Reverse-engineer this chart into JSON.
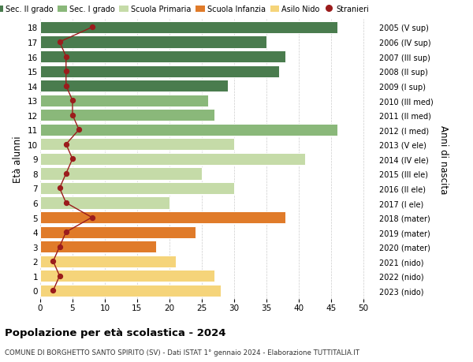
{
  "ages": [
    0,
    1,
    2,
    3,
    4,
    5,
    6,
    7,
    8,
    9,
    10,
    11,
    12,
    13,
    14,
    15,
    16,
    17,
    18
  ],
  "bar_values": [
    28,
    27,
    21,
    18,
    24,
    38,
    20,
    30,
    25,
    41,
    30,
    46,
    27,
    26,
    29,
    37,
    38,
    35,
    46
  ],
  "stranieri": [
    2,
    3,
    2,
    3,
    4,
    8,
    4,
    3,
    4,
    5,
    4,
    6,
    5,
    5,
    4,
    4,
    4,
    3,
    8
  ],
  "right_labels": [
    "2023 (nido)",
    "2022 (nido)",
    "2021 (nido)",
    "2020 (mater)",
    "2019 (mater)",
    "2018 (mater)",
    "2017 (I ele)",
    "2016 (II ele)",
    "2015 (III ele)",
    "2014 (IV ele)",
    "2013 (V ele)",
    "2012 (I med)",
    "2011 (II med)",
    "2010 (III med)",
    "2009 (I sup)",
    "2008 (II sup)",
    "2007 (III sup)",
    "2006 (IV sup)",
    "2005 (V sup)"
  ],
  "bar_colors": [
    "#f5d47a",
    "#f5d47a",
    "#f5d47a",
    "#e07b2a",
    "#e07b2a",
    "#e07b2a",
    "#c5dba8",
    "#c5dba8",
    "#c5dba8",
    "#c5dba8",
    "#c5dba8",
    "#8ab87a",
    "#8ab87a",
    "#8ab87a",
    "#4a7c4e",
    "#4a7c4e",
    "#4a7c4e",
    "#4a7c4e",
    "#4a7c4e"
  ],
  "stranieri_color": "#9b1c1c",
  "title": "Popolazione per età scolastica - 2024",
  "subtitle": "COMUNE DI BORGHETTO SANTO SPIRITO (SV) - Dati ISTAT 1° gennaio 2024 - Elaborazione TUTTITALIA.IT",
  "ylabel_left": "Età alunni",
  "ylabel_right": "Anni di nascita",
  "xlim": [
    0,
    52
  ],
  "xticks": [
    0,
    5,
    10,
    15,
    20,
    25,
    30,
    35,
    40,
    45,
    50
  ],
  "legend_labels": [
    "Sec. II grado",
    "Sec. I grado",
    "Scuola Primaria",
    "Scuola Infanzia",
    "Asilo Nido",
    "Stranieri"
  ],
  "legend_colors": [
    "#4a7c4e",
    "#8ab87a",
    "#c5dba8",
    "#e07b2a",
    "#f5d47a",
    "#9b1c1c"
  ]
}
